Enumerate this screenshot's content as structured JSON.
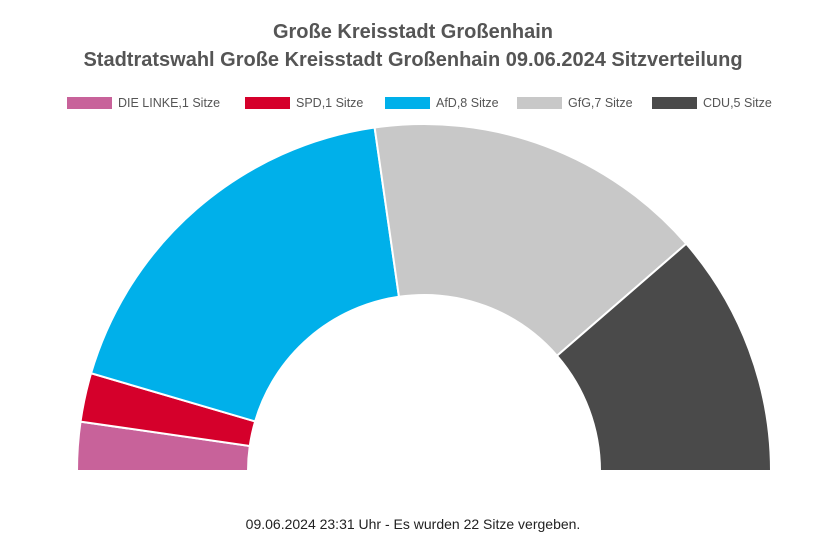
{
  "chart_data": {
    "type": "pie",
    "subtype": "half-donut (parliament seat distribution)",
    "title": "Große Kreisstadt Großenhain",
    "subtitle": "Stadtratswahl Große Kreisstadt Großenhain 09.06.2024 Sitzverteilung",
    "legend_position": "top",
    "series": [
      {
        "name": "DIE LINKE",
        "legend_label": "DIE LINKE,1 Sitze",
        "value": 1,
        "color": "#c8629a"
      },
      {
        "name": "SPD",
        "legend_label": "SPD,1 Sitze",
        "value": 1,
        "color": "#d5002b"
      },
      {
        "name": "AfD",
        "legend_label": "AfD,8 Sitze",
        "value": 8,
        "color": "#00b0ea"
      },
      {
        "name": "GfG",
        "legend_label": "GfG,7 Sitze",
        "value": 7,
        "color": "#c8c8c8"
      },
      {
        "name": "CDU",
        "legend_label": "CDU,5 Sitze",
        "value": 5,
        "color": "#4a4a4a"
      }
    ],
    "total_seats": 22
  },
  "footer": "09.06.2024 23:31 Uhr - Es wurden 22 Sitze vergeben."
}
